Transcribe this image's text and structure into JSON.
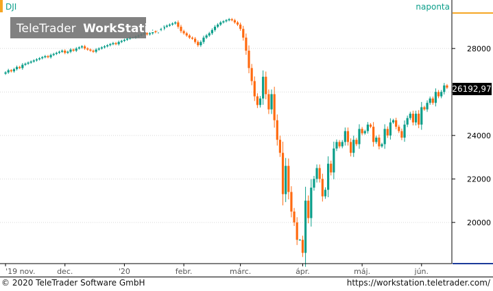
{
  "chart": {
    "symbol": "DJI",
    "interval_label": "naponta",
    "watermark": {
      "brand": "TeleTrader",
      "product": "WorkStation"
    },
    "last_price_label": "26192,97"
  },
  "footer": {
    "copyright": "© 2020 TeleTrader Software GmbH",
    "url": "https://workstation.teletrader.com/"
  },
  "colors": {
    "up": "#0b9e8a",
    "down": "#ff6a10",
    "accent": "#f5a623",
    "axis_text": "#000000",
    "price_tag_bg": "#000000",
    "grid": "#d8d8d8"
  },
  "chart_data": {
    "type": "candlestick",
    "ylim": [
      18200,
      29600
    ],
    "y_ticks": [
      20000,
      22000,
      24000,
      26000,
      28000
    ],
    "y_tick_labels": [
      "20000",
      "22000",
      "24000",
      "26000",
      "28000"
    ],
    "x_tick_labels": [
      "'19 nov.",
      "dec.",
      "'20",
      "febr.",
      "márc.",
      "ápr.",
      "máj.",
      "jún."
    ],
    "grid": true,
    "closes": [
      26900,
      27000,
      26950,
      27050,
      27150,
      27100,
      27250,
      27300,
      27350,
      27400,
      27450,
      27500,
      27550,
      27600,
      27650,
      27600,
      27700,
      27750,
      27800,
      27850,
      27900,
      27800,
      27850,
      27950,
      27900,
      28000,
      28050,
      28100,
      28000,
      27950,
      27900,
      27850,
      27950,
      28000,
      28050,
      28100,
      28150,
      28200,
      28250,
      28200,
      28300,
      28350,
      28400,
      28450,
      28500,
      28500,
      28550,
      28600,
      28650,
      28700,
      28650,
      28700,
      28800,
      28750,
      28850,
      28900,
      29000,
      29050,
      29100,
      29150,
      29200,
      29000,
      28800,
      28700,
      28600,
      28500,
      28450,
      28300,
      28150,
      28300,
      28500,
      28600,
      28700,
      28850,
      29000,
      29100,
      29200,
      29250,
      29300,
      29350,
      29300,
      29200,
      29100,
      28900,
      28500,
      27900,
      27100,
      26500,
      25800,
      25400,
      25700,
      26700,
      25900,
      25200,
      25900,
      24700,
      23800,
      23200,
      21300,
      22600,
      21400,
      20500,
      20000,
      19200,
      19200,
      18600,
      21000,
      20200,
      21600,
      22000,
      22500,
      22000,
      21200,
      21500,
      22700,
      22300,
      23400,
      23700,
      23500,
      23700,
      24200,
      23700,
      23200,
      23800,
      23600,
      24300,
      24100,
      24200,
      24500,
      24400,
      23700,
      23900,
      23500,
      23600,
      24300,
      24000,
      24600,
      24700,
      24400,
      24200,
      23900,
      24500,
      24800,
      25000,
      24600,
      25000,
      24500,
      25300,
      25200,
      25500,
      25700,
      25500,
      26000,
      25800,
      26000,
      26300,
      26200
    ]
  }
}
